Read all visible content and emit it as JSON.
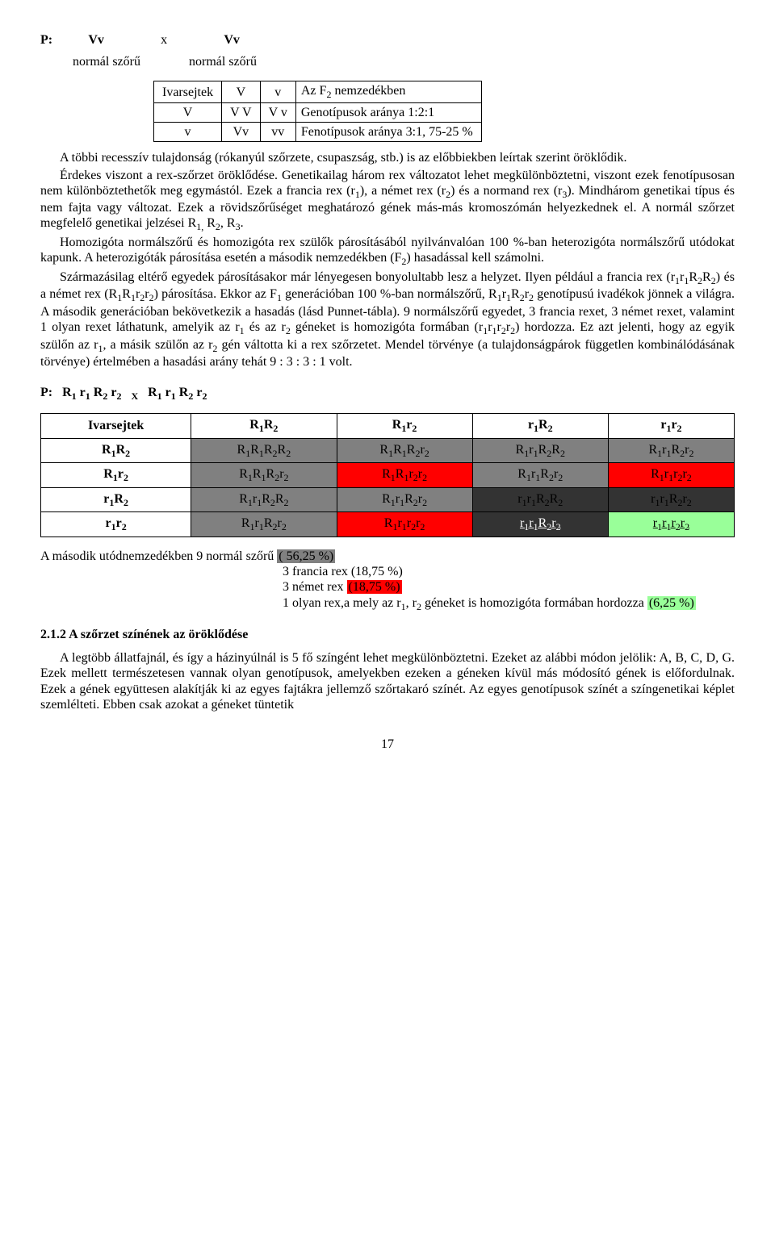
{
  "cross1": {
    "p_label": "P:",
    "parent_a": "Vv",
    "x": "x",
    "parent_b": "Vv",
    "desc_a": "normál szőrű",
    "desc_b": "normál szőrű"
  },
  "table1": {
    "h0": "Ivarsejtek",
    "h1": "V",
    "h2": "v",
    "h3_html": "Az F<sub>2</sub>  nemzedékben",
    "r1c0": "V",
    "r1c1": "V V",
    "r1c2": "V v",
    "r1note": "Genotípusok aránya 1:2:1",
    "r2c0": "v",
    "r2c1": "Vv",
    "r2c2": "vv",
    "r2note": "Fenotípusok aránya 3:1, 75-25 %"
  },
  "para1_html": "A többi recesszív tulajdonság (rókanyúl szőrzete, csupaszság, stb.) is az előbbiekben leírtak szerint öröklődik.",
  "para2_html": "Érdekes viszont a rex-szőrzet öröklődése. Genetikailag három rex változatot lehet megkülönböztetni, viszont ezek fenotípusosan nem különböztethetők meg egymástól. Ezek a francia rex (r<sub>1</sub>), a német rex (r<sub>2</sub>) és a normand rex (r<sub>3</sub>). Mindhárom genetikai típus és nem fajta vagy változat. Ezek a rövidszőrűséget meghatározó gének más-más kromoszómán helyezkednek el. A normál szőrzet megfelelő genetikai jelzései R<sub>1,</sub> R<sub>2</sub>, R<sub>3</sub>.",
  "para3_html": "Homozigóta normálszőrű és homozigóta rex szülők párosításából nyilvánvalóan 100 %-ban heterozigóta normálszőrű utódokat kapunk. A heterozigóták párosítása esetén a második nemzedékben (F<sub>2</sub>) hasadással kell számolni.",
  "para4_html": "Származásilag eltérő egyedek párosításakor már lényegesen bonyolultabb lesz a helyzet. Ilyen például a francia rex (r<sub>1</sub>r<sub>1</sub>R<sub>2</sub>R<sub>2</sub>) és a német rex (R<sub>1</sub>R<sub>1</sub>r<sub>2</sub>r<sub>2</sub>) párosítása. Ekkor az F<sub>1</sub> generációban 100 %-ban normálszőrű, R<sub>1</sub>r<sub>1</sub>R<sub>2</sub>r<sub>2</sub> genotípusú ivadékok jönnek a világra. A második generációban bekövetkezik a hasadás (lásd Punnet-tábla). 9 normálszőrű egyedet, 3 francia rexet, 3 német rexet, valamint 1 olyan rexet láthatunk, amelyik az r<sub>1</sub> és az r<sub>2</sub> géneket is homozigóta formában (r<sub>1</sub>r<sub>1</sub>r<sub>2</sub>r<sub>2</sub>) hordozza. Ez azt jelenti, hogy az egyik szülőn az r<sub>1</sub>, a másik szülőn az r<sub>2</sub> gén váltotta ki a rex szőrzetet. Mendel törvénye (a tulajdonságpárok független kombinálódásának törvénye) értelmében a hasadási arány tehát 9 : 3 : 3 : 1 volt.",
  "cross2_html": "P:&nbsp;&nbsp;&nbsp;R<sub>1</sub> r<sub>1</sub> R<sub>2</sub> r<sub>2</sub>&nbsp;&nbsp;&nbsp;<sub>X</sub>&nbsp;&nbsp;&nbsp;R<sub>1</sub> r<sub>1</sub> R<sub>2</sub> r<sub>2</sub>",
  "table2": {
    "colors": {
      "gray": "#808080",
      "dark": "#333333",
      "red": "#ff0000",
      "green": "#99ff99",
      "white": "#ffffff"
    },
    "header": [
      "Ivarsejtek",
      "R<sub>1</sub>R<sub>2</sub>",
      "R<sub>1</sub>r<sub>2</sub>",
      "r<sub>1</sub>R<sub>2</sub>",
      "r<sub>1</sub>r<sub>2</sub>"
    ],
    "rows": [
      {
        "hdr": "R<sub>1</sub>R<sub>2</sub>",
        "cells": [
          {
            "html": "R<sub>1</sub>R<sub>1</sub>R<sub>2</sub>R<sub>2</sub>",
            "bg": "gray"
          },
          {
            "html": "R<sub>1</sub>R<sub>1</sub>R<sub>2</sub>r<sub>2</sub>",
            "bg": "gray"
          },
          {
            "html": "R<sub>1</sub>r<sub>1</sub>R<sub>2</sub>R<sub>2</sub>",
            "bg": "gray"
          },
          {
            "html": "R<sub>1</sub>r<sub>1</sub>R<sub>2</sub>r<sub>2</sub>",
            "bg": "gray"
          }
        ]
      },
      {
        "hdr": "R<sub>1</sub>r<sub>2</sub>",
        "cells": [
          {
            "html": "R<sub>1</sub>R<sub>1</sub>R<sub>2</sub>r<sub>2</sub>",
            "bg": "gray"
          },
          {
            "html": "R<sub>1</sub>R<sub>1</sub>r<sub>2</sub>r<sub>2</sub>",
            "bg": "red"
          },
          {
            "html": "R<sub>1</sub>r<sub>1</sub>R<sub>2</sub>r<sub>2</sub>",
            "bg": "gray"
          },
          {
            "html": "R<sub>1</sub>r<sub>1</sub>r<sub>2</sub>r<sub>2</sub>",
            "bg": "red"
          }
        ]
      },
      {
        "hdr": "r<sub>1</sub>R<sub>2</sub>",
        "cells": [
          {
            "html": "R<sub>1</sub>r<sub>1</sub>R<sub>2</sub>R<sub>2</sub>",
            "bg": "gray"
          },
          {
            "html": "R<sub>1</sub>r<sub>1</sub>R<sub>2</sub>r<sub>2</sub>",
            "bg": "gray"
          },
          {
            "html": "r<sub>1</sub>r<sub>1</sub>R<sub>2</sub>R<sub>2</sub>",
            "bg": "dark"
          },
          {
            "html": "r<sub>1</sub>r<sub>1</sub>R<sub>2</sub>r<sub>2</sub>",
            "bg": "dark"
          }
        ]
      },
      {
        "hdr": "r<sub>1</sub>r<sub>2</sub>",
        "cells": [
          {
            "html": "R<sub>1</sub>r<sub>1</sub>R<sub>2</sub>r<sub>2</sub>",
            "bg": "gray"
          },
          {
            "html": "R<sub>1</sub>r<sub>1</sub>r<sub>2</sub>r<sub>2</sub>",
            "bg": "red"
          },
          {
            "html": "r<sub>1</sub>r<sub>1</sub>R<sub>2</sub>r<sub>2</sub>",
            "bg": "dark",
            "fg": "#ffffff",
            "underline": true
          },
          {
            "html": "r<sub>1</sub>r<sub>1</sub>r<sub>2</sub>r<sub>2</sub>",
            "bg": "green",
            "underline": true
          }
        ]
      }
    ]
  },
  "summary": {
    "line1_pre": "A második utódnemzedékben 9 normál szőrű ",
    "line1_hl": "( 56,25 %)",
    "line1_bg": "#808080",
    "line2_pre": "3 francia rex (18,75 %)",
    "line3_pre": "3 német rex ",
    "line3_hl": "(18,75 %)",
    "line3_bg": "#ff0000",
    "line4_html": "1 olyan rex,a mely az r<sub>1</sub>, r<sub>2</sub> géneket is homozigóta formában hordozza ",
    "line4_hl": "(6,25 %)",
    "line4_bg": "#99ff99"
  },
  "section_title": "2.1.2 A szőrzet színének az öröklődése",
  "para5": "A legtöbb állatfajnál, és így a házinyúlnál is 5 fő színgént lehet megkülönböztetni. Ezeket az alábbi módon jelölik: A, B, C, D, G. Ezek mellett természetesen vannak olyan genotípusok, amelyekben ezeken a géneken kívül más módosító gének is előfordulnak. Ezek a gének együttesen alakítják ki az egyes fajtákra jellemző szőrtakaró színét. Az egyes genotípusok színét a színgenetikai képlet szemlélteti. Ebben csak azokat a géneket tüntetik",
  "page_number": "17"
}
